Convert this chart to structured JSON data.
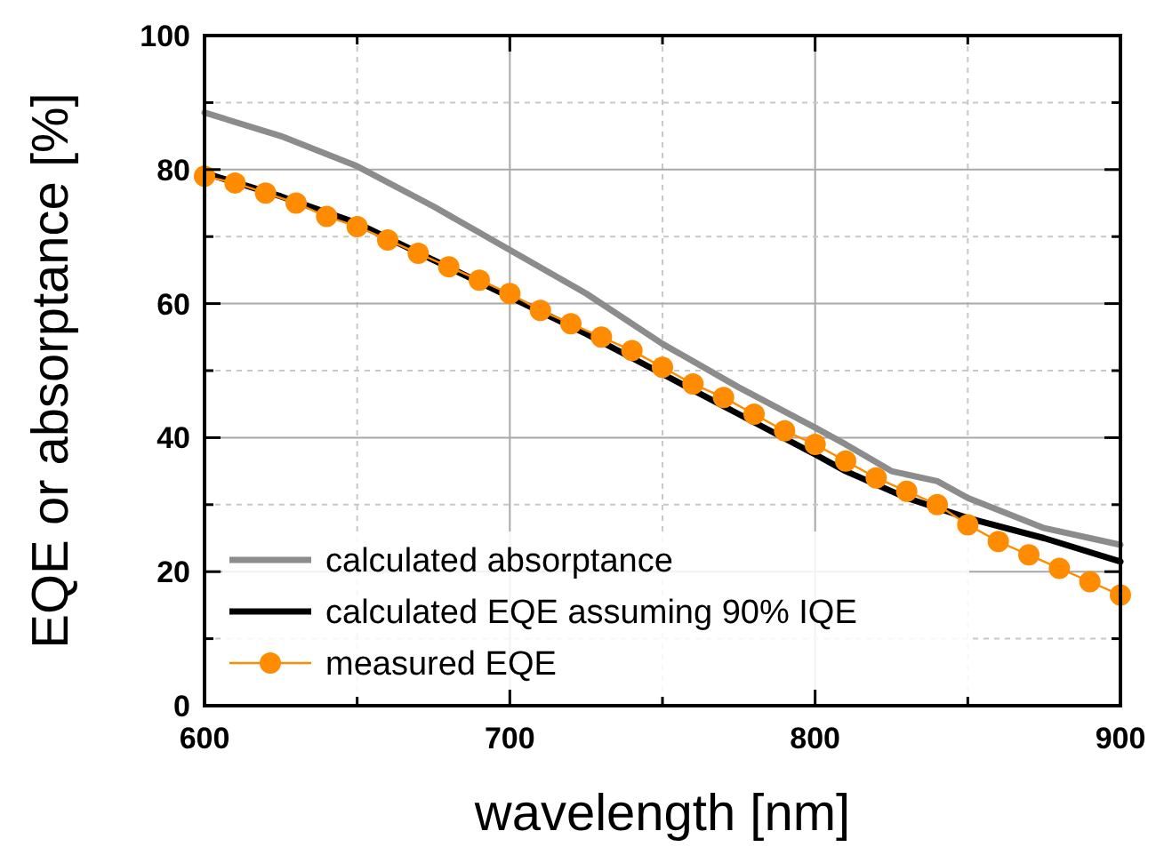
{
  "chart_data": {
    "type": "line",
    "xlabel": "wavelength [nm]",
    "ylabel": "EQE or absorptance [%]",
    "xlim": [
      600,
      900
    ],
    "ylim": [
      0,
      100
    ],
    "xticks": [
      600,
      {
        "value": 650,
        "label": null
      },
      700,
      {
        "value": 750,
        "label": null
      },
      800,
      {
        "value": 850,
        "label": null
      },
      900
    ],
    "yticks": [
      0,
      {
        "value": 10,
        "label": null
      },
      20,
      {
        "value": 30,
        "label": null
      },
      40,
      {
        "value": 50,
        "label": null
      },
      60,
      {
        "value": 70,
        "label": null
      },
      80,
      {
        "value": 90,
        "label": null
      },
      100
    ],
    "grid": true,
    "legend": "bottom left",
    "series": [
      {
        "name": "calculated absorptance",
        "color": "#8c8c8c",
        "marker": "none",
        "x": [
          600,
          625,
          650,
          675,
          700,
          725,
          750,
          775,
          800,
          810,
          825,
          840,
          850,
          875,
          900
        ],
        "values": [
          88.5,
          85,
          80.5,
          74.5,
          68,
          61.5,
          54,
          47.5,
          41.5,
          39,
          35,
          33.5,
          31,
          26.5,
          24
        ]
      },
      {
        "name": "calculated EQE assuming 90% IQE",
        "color": "#000000",
        "marker": "none",
        "x": [
          600,
          625,
          650,
          675,
          700,
          725,
          750,
          775,
          800,
          810,
          830,
          850,
          875,
          900
        ],
        "values": [
          79.5,
          76,
          72,
          66.5,
          61,
          55.5,
          49.5,
          43.5,
          37.5,
          35,
          31,
          28,
          25,
          21.5
        ]
      },
      {
        "name": "measured EQE",
        "color": "#ff8c00",
        "marker": "circle",
        "x": [
          600,
          610,
          620,
          630,
          640,
          650,
          660,
          670,
          680,
          690,
          700,
          710,
          720,
          730,
          740,
          750,
          760,
          770,
          780,
          790,
          800,
          810,
          820,
          830,
          840,
          850,
          860,
          870,
          880,
          890,
          900
        ],
        "values": [
          79,
          78,
          76.5,
          75,
          73,
          71.5,
          69.5,
          67.5,
          65.5,
          63.5,
          61.5,
          59,
          57,
          55,
          53,
          50.5,
          48,
          46,
          43.5,
          41,
          39,
          36.5,
          34,
          32,
          30,
          27,
          24.5,
          22.5,
          20.5,
          18.5,
          16.5
        ]
      }
    ]
  }
}
